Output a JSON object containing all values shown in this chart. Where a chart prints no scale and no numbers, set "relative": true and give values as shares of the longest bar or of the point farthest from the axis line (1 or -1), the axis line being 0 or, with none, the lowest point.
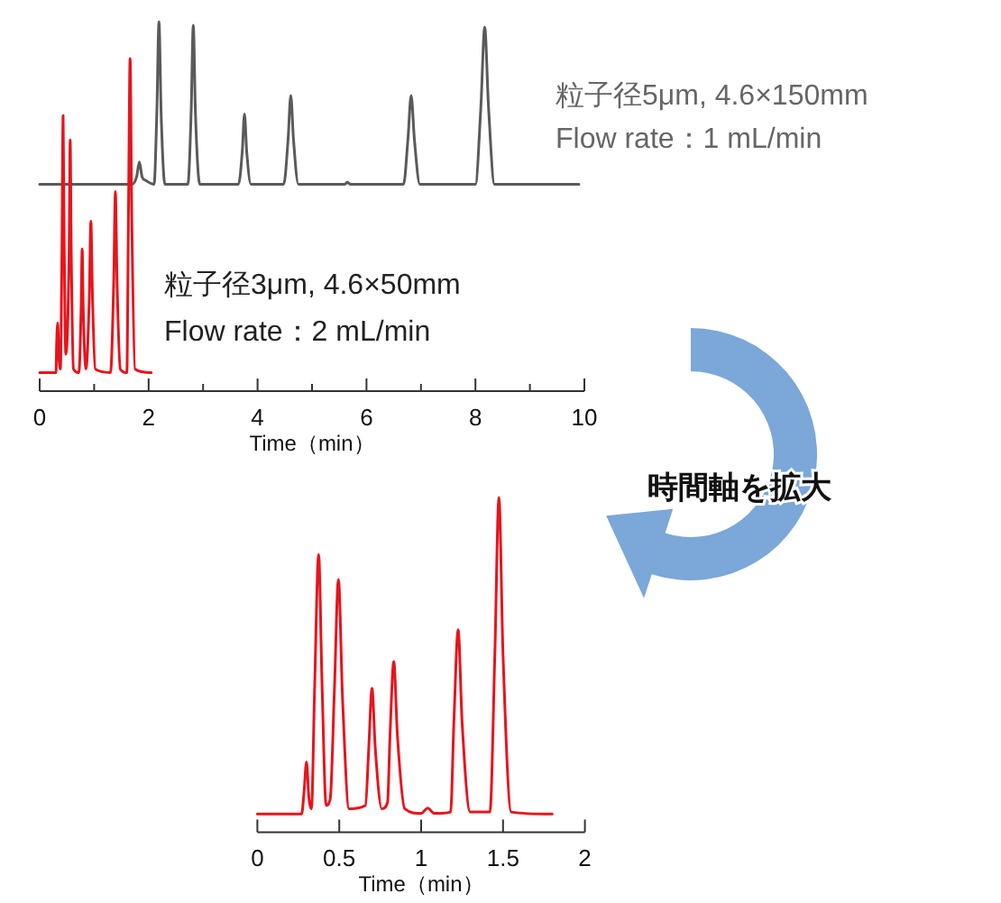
{
  "chart_data": [
    {
      "type": "line",
      "relative": true,
      "xlabel": "Time（min）",
      "xlim": [
        0,
        10
      ],
      "xticks": [
        0,
        {
          "value": 1,
          "label": null
        },
        2,
        {
          "value": 3,
          "label": null
        },
        4,
        {
          "value": 5,
          "label": null
        },
        6,
        {
          "value": 7,
          "label": null
        },
        8,
        {
          "value": 9,
          "label": null
        },
        10
      ],
      "series": [
        {
          "color": "#5a5a5a",
          "x": [
            0,
            1.7,
            1.78,
            1.83,
            1.88,
            1.95,
            2.1,
            2.15,
            2.19,
            2.23,
            2.3,
            2.72,
            2.78,
            2.82,
            2.86,
            2.94,
            3.65,
            3.72,
            3.76,
            3.8,
            3.88,
            4.48,
            4.56,
            4.61,
            4.66,
            4.75,
            5.6,
            5.65,
            5.7,
            6.68,
            6.76,
            6.82,
            6.88,
            6.98,
            8.0,
            8.1,
            8.17,
            8.24,
            8.35,
            9.9
          ],
          "values": [
            0.56,
            0.56,
            0.58,
            0.62,
            0.58,
            0.57,
            0.56,
            0.75,
            1.0,
            0.75,
            0.56,
            0.56,
            0.75,
            0.99,
            0.75,
            0.56,
            0.56,
            0.65,
            0.75,
            0.65,
            0.56,
            0.56,
            0.68,
            0.8,
            0.68,
            0.56,
            0.56,
            0.565,
            0.56,
            0.56,
            0.68,
            0.8,
            0.68,
            0.56,
            0.56,
            0.77,
            0.985,
            0.77,
            0.56,
            0.56
          ]
        },
        {
          "color": "#e8141c",
          "x": [
            0,
            0.3,
            0.31,
            0.33,
            0.35,
            0.38,
            0.41,
            0.43,
            0.45,
            0.48,
            0.54,
            0.56,
            0.58,
            0.62,
            0.72,
            0.76,
            0.78,
            0.8,
            0.85,
            0.91,
            0.94,
            0.97,
            1.02,
            1.3,
            1.36,
            1.39,
            1.42,
            1.48,
            1.6,
            1.63,
            1.66,
            1.69,
            1.75,
            2.05
          ],
          "values": [
            0.05,
            0.05,
            0.12,
            0.185,
            0.1,
            0.06,
            0.4,
            0.746,
            0.4,
            0.1,
            0.37,
            0.68,
            0.37,
            0.06,
            0.05,
            0.22,
            0.385,
            0.22,
            0.06,
            0.25,
            0.46,
            0.25,
            0.06,
            0.05,
            0.3,
            0.54,
            0.3,
            0.06,
            0.05,
            0.48,
            0.9,
            0.48,
            0.06,
            0.05
          ]
        }
      ],
      "annotations": [
        "粒子径5μm, 4.6×150mm",
        "Flow rate：1 mL/min",
        "粒子径3μm, 4.6×50mm",
        "Flow rate：2 mL/min"
      ]
    },
    {
      "type": "line",
      "relative": true,
      "xlabel": "Time（min）",
      "xlim": [
        0,
        2
      ],
      "xticks": [
        0,
        0.5,
        1,
        1.5,
        2
      ],
      "series": [
        {
          "color": "#e8141c",
          "x": [
            0,
            0.27,
            0.285,
            0.3,
            0.315,
            0.33,
            0.35,
            0.374,
            0.395,
            0.42,
            0.445,
            0.47,
            0.495,
            0.52,
            0.56,
            0.66,
            0.68,
            0.7,
            0.72,
            0.76,
            0.795,
            0.81,
            0.833,
            0.855,
            0.9,
            1.0,
            1.04,
            1.08,
            1.18,
            1.2,
            1.226,
            1.25,
            1.3,
            1.42,
            1.45,
            1.475,
            1.5,
            1.55,
            1.8
          ],
          "values": [
            0.054,
            0.054,
            0.12,
            0.21,
            0.1,
            0.07,
            0.44,
            0.83,
            0.44,
            0.08,
            0.1,
            0.42,
            0.755,
            0.4,
            0.07,
            0.08,
            0.25,
            0.43,
            0.25,
            0.07,
            0.09,
            0.29,
            0.51,
            0.29,
            0.07,
            0.056,
            0.072,
            0.056,
            0.06,
            0.33,
            0.605,
            0.33,
            0.06,
            0.06,
            0.53,
            1.0,
            0.53,
            0.06,
            0.054
          ]
        }
      ],
      "annotations": [
        "時間軸を拡大"
      ]
    }
  ]
}
